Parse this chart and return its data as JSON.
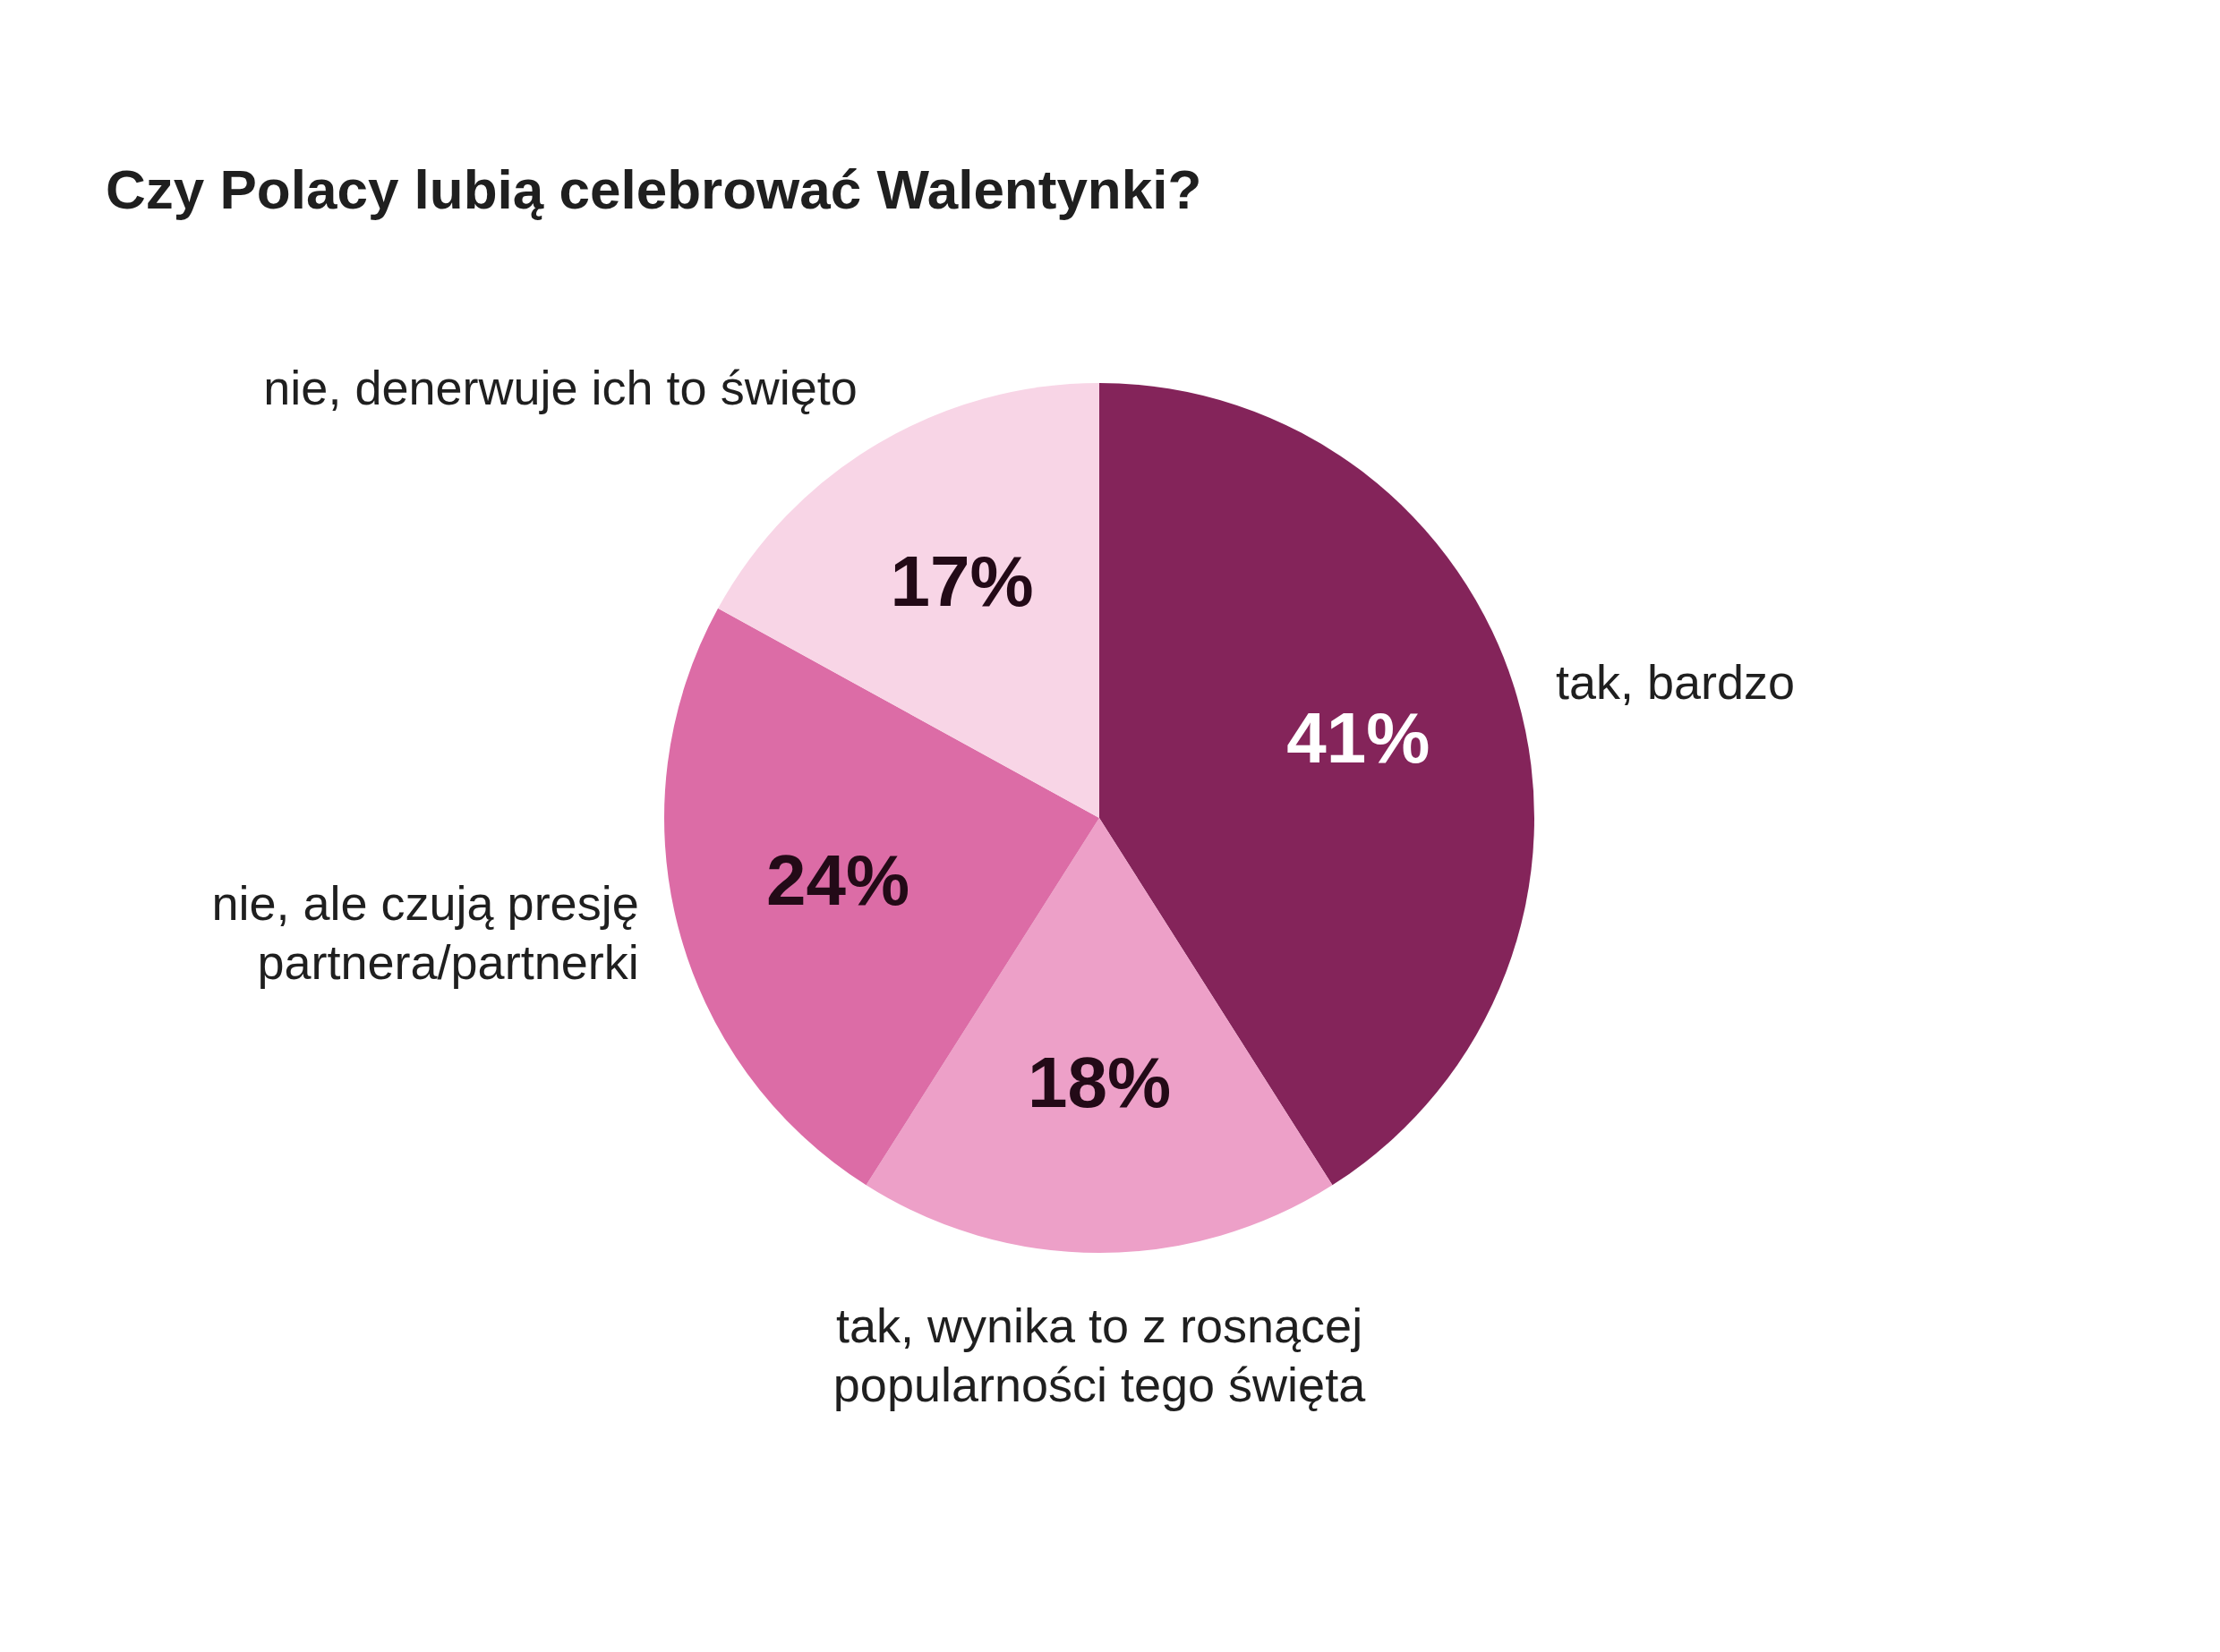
{
  "chart_data": {
    "type": "pie",
    "title": "Czy Polacy lubią celebrować Walentynki?",
    "categories": [
      "tak, bardzo",
      "tak, wynika to z rosnącej popularności tego święta",
      "nie, ale czują presję partnera/partnerki",
      "nie, denerwuje ich to święto"
    ],
    "values": [
      41,
      18,
      24,
      17
    ],
    "colors": [
      "#84245a",
      "#eda0c8",
      "#dc6ca6",
      "#f8d5e6"
    ],
    "value_labels": [
      "41%",
      "18%",
      "24%",
      "17%"
    ]
  }
}
